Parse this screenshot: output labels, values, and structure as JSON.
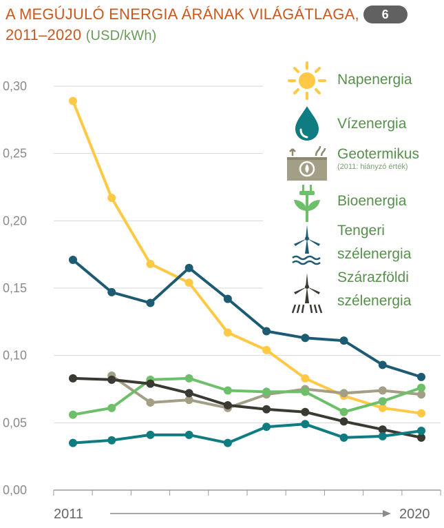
{
  "title": {
    "line1": "A MEGÚJULÓ ENERGIA ÁRÁNAK VILÁGÁTLAGA,",
    "badge": "6",
    "line2_main": "2011–2020",
    "line2_unit": "(USD/kWh)"
  },
  "colors": {
    "title": "#c65a1e",
    "grid": "#d6d6d6",
    "axis": "#9a9a9a",
    "legend_text": "#588f4e"
  },
  "legend": [
    {
      "key": "nap",
      "label": "Napenergia",
      "note": "",
      "icon": "sun-icon",
      "color": "#ffc845"
    },
    {
      "key": "viz",
      "label": "Vízenergia",
      "note": "",
      "icon": "water-drop-icon",
      "color": "#0e7c80"
    },
    {
      "key": "geo",
      "label": "Geotermikus",
      "note": "(2011: hiányzó érték)",
      "icon": "geothermal-icon",
      "color": "#a39e86"
    },
    {
      "key": "bio",
      "label": "Bioenergia",
      "note": "",
      "icon": "plug-leaf-icon",
      "color": "#6dbf6a"
    },
    {
      "key": "tenger",
      "label": "Tengeri szélenergia",
      "note": "",
      "icon": "offshore-wind-icon",
      "color": "#1d5b73"
    },
    {
      "key": "szaraz",
      "label": "Szárazföldi szélenergia",
      "note": "",
      "icon": "onshore-wind-icon",
      "color": "#3a3a33"
    }
  ],
  "chart_data": {
    "type": "line",
    "title": "A MEGÚJULÓ ENERGIA ÁRÁNAK VILÁGÁTLAGA, 2011–2020",
    "ylabel": "USD/kWh",
    "xlabel": "",
    "x": [
      2011,
      2012,
      2013,
      2014,
      2015,
      2016,
      2017,
      2018,
      2019,
      2020
    ],
    "x_label_start": "2011",
    "x_label_end": "2020",
    "ylim": [
      0,
      0.3
    ],
    "yticks": [
      "0,30",
      "0,25",
      "0,20",
      "0,15",
      "0,10",
      "0,05",
      "0,00"
    ],
    "grid": true,
    "series": [
      {
        "name": "Napenergia",
        "values": [
          0.289,
          0.217,
          0.168,
          0.154,
          0.117,
          0.104,
          0.083,
          0.07,
          0.061,
          0.057
        ]
      },
      {
        "name": "Tengeri szélenergia",
        "values": [
          0.171,
          0.147,
          0.139,
          0.165,
          0.142,
          0.118,
          0.113,
          0.111,
          0.093,
          0.084
        ]
      },
      {
        "name": "Geotermikus",
        "values": [
          null,
          0.085,
          0.065,
          0.067,
          0.061,
          0.071,
          0.075,
          0.072,
          0.074,
          0.071
        ]
      },
      {
        "name": "Bioenergia",
        "values": [
          0.056,
          0.061,
          0.082,
          0.083,
          0.074,
          0.073,
          0.073,
          0.058,
          0.066,
          0.076
        ]
      },
      {
        "name": "Szárazföldi szélenergia",
        "values": [
          0.083,
          0.082,
          0.079,
          0.072,
          0.063,
          0.06,
          0.058,
          0.051,
          0.045,
          0.039
        ]
      },
      {
        "name": "Vízenergia",
        "values": [
          0.035,
          0.037,
          0.041,
          0.041,
          0.035,
          0.047,
          0.049,
          0.039,
          0.04,
          0.044
        ]
      }
    ]
  }
}
